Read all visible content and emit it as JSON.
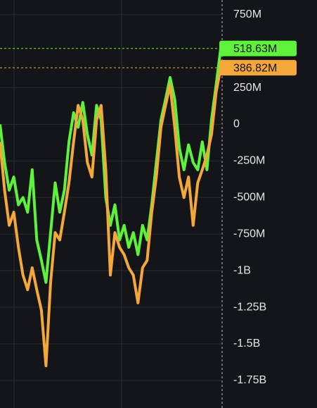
{
  "chart_data": {
    "type": "line",
    "ylim": [
      -1900,
      850
    ],
    "yticks": [
      {
        "value": 750,
        "label": "750M"
      },
      {
        "value": 250,
        "label": "250M"
      },
      0,
      {
        "value": -250,
        "label": "-250M"
      },
      {
        "value": -500,
        "label": "-500M"
      },
      {
        "value": -750,
        "label": "-750M"
      },
      {
        "value": -1000,
        "label": "-1B"
      },
      {
        "value": -1250,
        "label": "-1.25B"
      },
      {
        "value": -1500,
        "label": "-1.5B"
      },
      {
        "value": -1750,
        "label": "-1.75B"
      }
    ],
    "grid": true,
    "series": [
      {
        "color": "#5ff23c",
        "values": [
          0,
          -260,
          -450,
          -360,
          -550,
          -500,
          -600,
          -310,
          -790,
          -930,
          -1080,
          -740,
          -400,
          -600,
          -450,
          -120,
          80,
          -20,
          150,
          -70,
          -210,
          130,
          30,
          -500,
          -690,
          -550,
          -790,
          -690,
          -840,
          -740,
          -890,
          -690,
          -790,
          -550,
          -260,
          30,
          170,
          320,
          170,
          -160,
          -310,
          -140,
          -260,
          -310,
          -120,
          -310,
          30,
          270,
          518.63
        ],
        "price_line": {
          "value": 518.63,
          "label": "518.63M"
        }
      },
      {
        "color": "#f4a83a",
        "values": [
          -120,
          -450,
          -690,
          -600,
          -840,
          -1030,
          -1130,
          -980,
          -1130,
          -1270,
          -1650,
          -1080,
          -740,
          -790,
          -600,
          -400,
          -120,
          130,
          30,
          -260,
          -360,
          30,
          130,
          -310,
          -1030,
          -740,
          -840,
          -890,
          -980,
          -1030,
          -1220,
          -980,
          -930,
          -600,
          -360,
          -20,
          130,
          270,
          -20,
          -360,
          -500,
          -360,
          -690,
          -400,
          -310,
          -210,
          -70,
          220,
          386.82
        ],
        "price_line": {
          "value": 386.82,
          "label": "386.82M"
        }
      }
    ]
  }
}
